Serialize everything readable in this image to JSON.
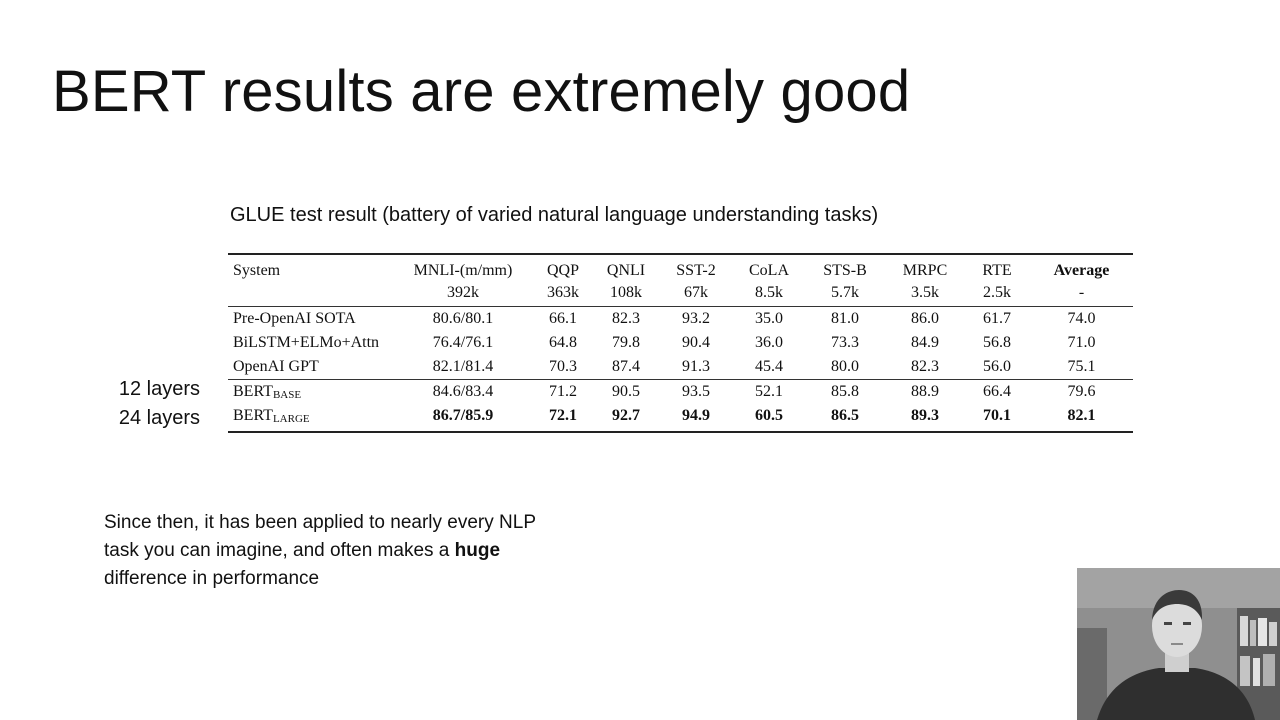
{
  "slide": {
    "title": "BERT results are extremely good",
    "subtitle": "GLUE test result (battery of varied natural language understanding tasks)",
    "side_labels": [
      "12 layers",
      "24 layers"
    ],
    "note": {
      "part1": "Since then, it has been applied to nearly every NLP task you can imagine, and often makes a ",
      "bold": "huge",
      "part2": " difference in performance"
    }
  },
  "table": {
    "headers": [
      "System",
      "MNLI-(m/mm)",
      "QQP",
      "QNLI",
      "SST-2",
      "CoLA",
      "STS-B",
      "MRPC",
      "RTE",
      "Average"
    ],
    "sizes": [
      "",
      "392k",
      "363k",
      "108k",
      "67k",
      "8.5k",
      "5.7k",
      "3.5k",
      "2.5k",
      "-"
    ],
    "rows": [
      {
        "system": "Pre-OpenAI SOTA",
        "values": [
          "80.6/80.1",
          "66.1",
          "82.3",
          "93.2",
          "35.0",
          "81.0",
          "86.0",
          "61.7",
          "74.0"
        ]
      },
      {
        "system": "BiLSTM+ELMo+Attn",
        "values": [
          "76.4/76.1",
          "64.8",
          "79.8",
          "90.4",
          "36.0",
          "73.3",
          "84.9",
          "56.8",
          "71.0"
        ]
      },
      {
        "system": "OpenAI GPT",
        "values": [
          "82.1/81.4",
          "70.3",
          "87.4",
          "91.3",
          "45.4",
          "80.0",
          "82.3",
          "56.0",
          "75.1"
        ]
      },
      {
        "system": "BERT",
        "subscript": "BASE",
        "values": [
          "84.6/83.4",
          "71.2",
          "90.5",
          "93.5",
          "52.1",
          "85.8",
          "88.9",
          "66.4",
          "79.6"
        ]
      },
      {
        "system": "BERT",
        "subscript": "LARGE",
        "values": [
          "86.7/85.9",
          "72.1",
          "92.7",
          "94.9",
          "60.5",
          "86.5",
          "89.3",
          "70.1",
          "82.1"
        ]
      }
    ]
  },
  "webcam": {
    "icon": "presenter-webcam-image"
  }
}
